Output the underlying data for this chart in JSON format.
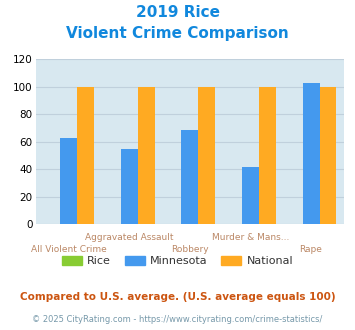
{
  "title_line1": "2019 Rice",
  "title_line2": "Violent Crime Comparison",
  "categories": [
    "All Violent Crime",
    "Aggravated Assault",
    "Robbery",
    "Murder & Mans...",
    "Rape"
  ],
  "cat_labels_upper": [
    "",
    "Aggravated Assault",
    "",
    "Murder & Mans...",
    ""
  ],
  "cat_labels_lower": [
    "All Violent Crime",
    "",
    "Robbery",
    "",
    "Rape"
  ],
  "series": {
    "Rice": [
      0,
      0,
      0,
      0,
      0
    ],
    "Minnesota": [
      63,
      55,
      69,
      42,
      103
    ],
    "National": [
      100,
      100,
      100,
      100,
      100
    ]
  },
  "colors": {
    "Rice": "#88cc33",
    "Minnesota": "#4499ee",
    "National": "#ffaa22"
  },
  "ylim": [
    0,
    120
  ],
  "yticks": [
    0,
    20,
    40,
    60,
    80,
    100,
    120
  ],
  "background_color": "#d8e8f0",
  "title_color": "#1188dd",
  "xlabel_upper_color": "#bb8866",
  "xlabel_lower_color": "#bb8866",
  "legend_label_color": "#333333",
  "footnote1": "Compared to U.S. average. (U.S. average equals 100)",
  "footnote2": "© 2025 CityRating.com - https://www.cityrating.com/crime-statistics/",
  "footnote1_color": "#cc5511",
  "footnote2_color": "#7799aa",
  "title_fontsize": 11,
  "subtitle_fontsize": 11,
  "bar_width": 0.28,
  "grid_color": "#c0d0dc"
}
